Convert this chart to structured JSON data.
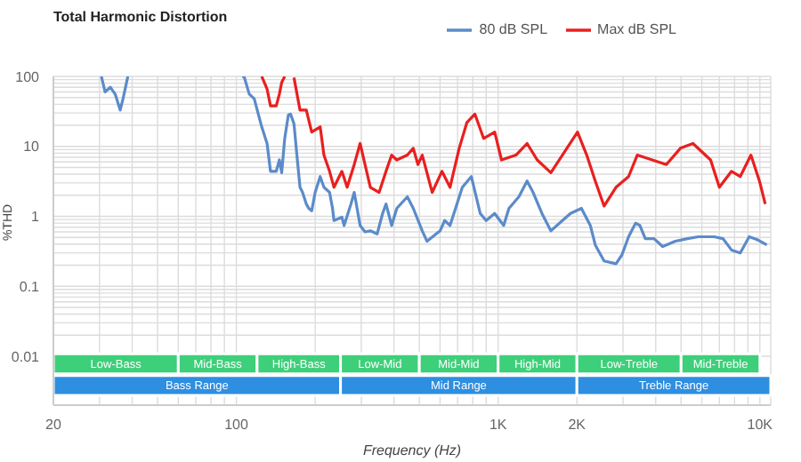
{
  "chart_data": {
    "type": "line",
    "title": "Total Harmonic Distortion",
    "xlabel": "Frequency (Hz)",
    "ylabel": "%THD",
    "log": "xy",
    "grid": true,
    "legend": "top right",
    "line_style": "solid",
    "xlim": [
      20,
      11000
    ],
    "ylim": [
      0.002,
      100
    ],
    "xticks": [
      20,
      {
        "value": 30,
        "label": null
      },
      {
        "value": 40,
        "label": null
      },
      {
        "value": 50,
        "label": null
      },
      {
        "value": 60,
        "label": null
      },
      {
        "value": 70,
        "label": null
      },
      {
        "value": 80,
        "label": null
      },
      {
        "value": 90,
        "label": null
      },
      100,
      {
        "value": 200,
        "label": null
      },
      {
        "value": 300,
        "label": null
      },
      {
        "value": 400,
        "label": null
      },
      {
        "value": 500,
        "label": null
      },
      {
        "value": 600,
        "label": null
      },
      {
        "value": 700,
        "label": null
      },
      {
        "value": 800,
        "label": null
      },
      {
        "value": 900,
        "label": null
      },
      {
        "value": 1000,
        "label": "1K"
      },
      {
        "value": 2000,
        "label": "2K"
      },
      {
        "value": 3000,
        "label": null
      },
      {
        "value": 4000,
        "label": null
      },
      {
        "value": 5000,
        "label": null
      },
      {
        "value": 6000,
        "label": null
      },
      {
        "value": 7000,
        "label": null
      },
      {
        "value": 8000,
        "label": null
      },
      {
        "value": 9000,
        "label": null
      },
      {
        "value": 10000,
        "label": "10K"
      }
    ],
    "yticks": [
      0.01,
      {
        "value": 0.02,
        "label": null
      },
      {
        "value": 0.03,
        "label": null
      },
      {
        "value": 0.04,
        "label": null
      },
      {
        "value": 0.05,
        "label": null
      },
      {
        "value": 0.06,
        "label": null
      },
      {
        "value": 0.07,
        "label": null
      },
      {
        "value": 0.08,
        "label": null
      },
      {
        "value": 0.09,
        "label": null
      },
      0.1,
      {
        "value": 0.2,
        "label": null
      },
      {
        "value": 0.3,
        "label": null
      },
      {
        "value": 0.4,
        "label": null
      },
      {
        "value": 0.5,
        "label": null
      },
      {
        "value": 0.6,
        "label": null
      },
      {
        "value": 0.7,
        "label": null
      },
      {
        "value": 0.8,
        "label": null
      },
      {
        "value": 0.9,
        "label": null
      },
      1,
      {
        "value": 2,
        "label": null
      },
      {
        "value": 3,
        "label": null
      },
      {
        "value": 4,
        "label": null
      },
      {
        "value": 5,
        "label": null
      },
      {
        "value": 6,
        "label": null
      },
      {
        "value": 7,
        "label": null
      },
      {
        "value": 8,
        "label": null
      },
      {
        "value": 9,
        "label": null
      },
      10,
      {
        "value": 20,
        "label": null
      },
      {
        "value": 30,
        "label": null
      },
      {
        "value": 40,
        "label": null
      },
      {
        "value": 50,
        "label": null
      },
      {
        "value": 60,
        "label": null
      },
      {
        "value": 70,
        "label": null
      },
      {
        "value": 80,
        "label": null
      },
      {
        "value": 90,
        "label": null
      },
      100
    ],
    "bands": [
      {
        "axis": "x",
        "from": 20,
        "to": 60,
        "label": "Low-Bass",
        "color": "#3ecf7a"
      },
      {
        "axis": "x",
        "from": 60,
        "to": 120,
        "label": "Mid-Bass",
        "color": "#3ecf7a"
      },
      {
        "axis": "x",
        "from": 120,
        "to": 250,
        "label": "High-Bass",
        "color": "#3ecf7a"
      },
      {
        "axis": "x",
        "from": 250,
        "to": 500,
        "label": "Low-Mid",
        "color": "#3ecf7a"
      },
      {
        "axis": "x",
        "from": 500,
        "to": 1000,
        "label": "Mid-Mid",
        "color": "#3ecf7a"
      },
      {
        "axis": "x",
        "from": 1000,
        "to": 2000,
        "label": "High-Mid",
        "color": "#3ecf7a"
      },
      {
        "axis": "x",
        "from": 2000,
        "to": 5000,
        "label": "Low-Treble",
        "color": "#3ecf7a"
      },
      {
        "axis": "x",
        "from": 5000,
        "to": 10000,
        "label": "Mid-Treble",
        "color": "#3ecf7a"
      },
      {
        "axis": "x",
        "from": 20,
        "to": 250,
        "label": "Bass Range",
        "color": "#2e8ee0"
      },
      {
        "axis": "x",
        "from": 250,
        "to": 2000,
        "label": "Mid Range",
        "color": "#2e8ee0"
      },
      {
        "axis": "x",
        "from": 2000,
        "to": 11000,
        "label": "Treble Range",
        "color": "#2e8ee0"
      }
    ],
    "series": [
      {
        "name": "80 dB SPL",
        "color": "#5b8bc9",
        "x": [
          30.5,
          31.5,
          33,
          34.5,
          36,
          37,
          38.5,
          39,
          104,
          105,
          107,
          112,
          117,
          125,
          131,
          135,
          142,
          146,
          149,
          153,
          158,
          161,
          166,
          171,
          175,
          179,
          185,
          189,
          194,
          200,
          209,
          216,
          227,
          233,
          236,
          253,
          258,
          274,
          282,
          297,
          310,
          325,
          345,
          362,
          373,
          392,
          410,
          450,
          474,
          513,
          535,
          600,
          625,
          655,
          730,
          790,
          854,
          900,
          970,
          1050,
          1100,
          1200,
          1290,
          1360,
          1470,
          1590,
          1760,
          1890,
          2080,
          2250,
          2350,
          2540,
          2820,
          2970,
          3150,
          3350,
          3480,
          3650,
          3940,
          4250,
          4750,
          5280,
          5810,
          6680,
          7230,
          7790,
          8410,
          9100,
          9820,
          10630
        ],
        "values": [
          100,
          60,
          70,
          55,
          33,
          50,
          100,
          null,
          null,
          100,
          100,
          56,
          48,
          19,
          11,
          4.4,
          4.4,
          6.4,
          4.2,
          13,
          28,
          29,
          21,
          6.4,
          2.6,
          2.2,
          1.5,
          1.3,
          1.2,
          2.2,
          3.7,
          2.6,
          2.2,
          1.3,
          0.87,
          0.97,
          0.74,
          1.5,
          2.2,
          0.74,
          0.6,
          0.62,
          0.56,
          1.1,
          1.5,
          0.74,
          1.3,
          1.9,
          1.3,
          0.62,
          0.44,
          0.62,
          0.87,
          0.74,
          2.6,
          3.7,
          1.1,
          0.87,
          1.1,
          0.74,
          1.3,
          1.9,
          3.2,
          2.2,
          1.1,
          0.62,
          0.87,
          1.1,
          1.3,
          0.74,
          0.39,
          0.23,
          0.21,
          0.28,
          0.51,
          0.8,
          0.74,
          0.48,
          0.48,
          0.37,
          0.44,
          0.48,
          0.51,
          0.51,
          0.48,
          0.33,
          0.3,
          0.51,
          0.46,
          0.39
        ]
      },
      {
        "name": "Max dB SPL",
        "color": "#e8201f",
        "x": [
          125,
          131,
          135,
          142,
          146,
          149,
          153,
          160,
          166,
          175,
          185,
          194,
          209,
          216,
          227,
          236,
          253,
          265,
          282,
          297,
          310,
          325,
          351,
          373,
          392,
          410,
          450,
          474,
          494,
          513,
          560,
          610,
          655,
          710,
          760,
          815,
          880,
          970,
          1030,
          1170,
          1290,
          1410,
          1590,
          1760,
          2010,
          2180,
          2350,
          2540,
          2820,
          3150,
          3400,
          3880,
          4390,
          4970,
          5550,
          6480,
          7000,
          7790,
          8410,
          9240,
          9960,
          10480
        ],
        "values": [
          100,
          66,
          38,
          38,
          56,
          82,
          100,
          null,
          96,
          33,
          33,
          16,
          19,
          7.5,
          4.4,
          2.6,
          4.4,
          2.6,
          5.5,
          11,
          5.5,
          2.6,
          2.2,
          4.4,
          7.5,
          6.4,
          7.5,
          9.4,
          5.5,
          7.5,
          2.2,
          4.4,
          2.6,
          9.4,
          22,
          29,
          13,
          16,
          6.4,
          7.5,
          11,
          6.4,
          4.2,
          7.5,
          16,
          7.5,
          3.2,
          1.4,
          2.6,
          3.7,
          7.5,
          6.4,
          5.5,
          9.4,
          11,
          6.4,
          2.6,
          4.4,
          3.7,
          7.5,
          3.2,
          1.5
        ]
      }
    ]
  }
}
